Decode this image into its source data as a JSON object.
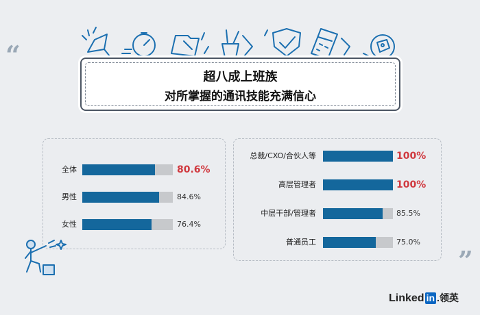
{
  "header": {
    "line1": "超八成上班族",
    "line2": "对所掌握的通讯技能充满信心"
  },
  "chart_data": [
    {
      "type": "bar",
      "categories": [
        "全体",
        "男性",
        "女性"
      ],
      "values": [
        80.6,
        84.6,
        76.4
      ],
      "value_labels": [
        "80.6%",
        "84.6%",
        "76.4%"
      ],
      "highlight_index": [
        0
      ],
      "xlim": [
        0,
        100
      ],
      "title": "",
      "xlabel": "",
      "ylabel": ""
    },
    {
      "type": "bar",
      "categories": [
        "总裁/CXO/合伙人等",
        "高层管理者",
        "中层干部/管理者",
        "普通员工"
      ],
      "values": [
        100,
        100,
        85.5,
        75.0
      ],
      "value_labels": [
        "100%",
        "100%",
        "85.5%",
        "75.0%"
      ],
      "highlight_index": [
        0,
        1
      ],
      "xlim": [
        0,
        100
      ],
      "title": "",
      "xlabel": "",
      "ylabel": ""
    }
  ],
  "colors": {
    "bar_fill": "#14679c",
    "bar_track": "#c7c9cc",
    "highlight_text": "#d0393f",
    "background": "#eceef1"
  },
  "logo": {
    "text_main": "Linked",
    "text_in": "in",
    "text_cn": ".领英"
  },
  "icons": [
    "megaphone-icon",
    "stopwatch-icon",
    "folder-icon",
    "pen-cup-icon",
    "shield-icon",
    "calculator-icon",
    "price-tag-icon",
    "person-with-star-icon"
  ]
}
